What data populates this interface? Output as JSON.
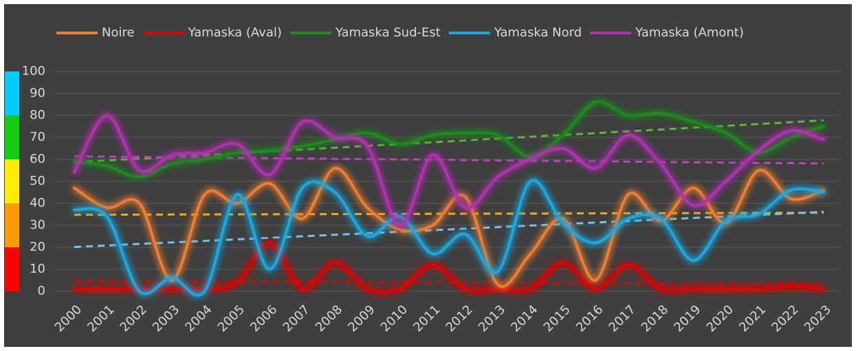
{
  "chart_data": {
    "type": "line",
    "smooth": true,
    "trendlines": true,
    "grid": true,
    "legend": "top",
    "categories": [
      "2000",
      "2001",
      "2002",
      "2003",
      "2004",
      "2005",
      "2006",
      "2007",
      "2008",
      "2009",
      "2010",
      "2011",
      "2012",
      "2013",
      "2014",
      "2015",
      "2016",
      "2017",
      "2018",
      "2019",
      "2020",
      "2021",
      "2022",
      "2023"
    ],
    "ylim": [
      0,
      100
    ],
    "yticks": [
      0,
      10,
      20,
      30,
      40,
      50,
      60,
      70,
      80,
      90,
      100
    ],
    "bands": [
      {
        "from": 0,
        "to": 20,
        "color": "#ff0000"
      },
      {
        "from": 20,
        "to": 40,
        "color": "#ff9900"
      },
      {
        "from": 40,
        "to": 60,
        "color": "#ffee00"
      },
      {
        "from": 60,
        "to": 80,
        "color": "#11cc11"
      },
      {
        "from": 80,
        "to": 100,
        "color": "#00ccff"
      }
    ],
    "series": [
      {
        "name": "Noire",
        "color": "#ed7d31",
        "trend_color": "#ffaa00",
        "values": [
          47,
          38,
          40,
          5,
          44,
          40,
          49,
          33,
          56,
          38,
          28,
          30,
          43,
          3,
          17,
          33,
          5,
          44,
          32,
          47,
          31,
          55,
          42,
          46
        ]
      },
      {
        "name": "Yamaska (Aval)",
        "color": "#e00000",
        "trend_color": "#e00000",
        "values": [
          1,
          1,
          1,
          1,
          1,
          4,
          22,
          1,
          13,
          1,
          1,
          12,
          1,
          1,
          1,
          13,
          1,
          12,
          1,
          1,
          1,
          1,
          2,
          1
        ]
      },
      {
        "name": "Yamaska Sud-Est",
        "color": "#1e8a1e",
        "trend_color": "#5fb83a",
        "values": [
          59,
          57,
          52,
          58,
          60,
          63,
          64,
          66,
          69,
          72,
          67,
          71,
          72,
          71,
          61,
          71,
          86,
          80,
          81,
          77,
          72,
          63,
          70,
          75
        ]
      },
      {
        "name": "Yamaska Nord",
        "color": "#1aa7e0",
        "trend_color": "#6cc4f0",
        "values": [
          37,
          34,
          0,
          6,
          0,
          44,
          10,
          47,
          45,
          25,
          34,
          17,
          26,
          9,
          50,
          31,
          22,
          33,
          33,
          14,
          32,
          35,
          46,
          45
        ]
      },
      {
        "name": "Yamaska (Amont)",
        "color": "#b030b0",
        "trend_color": "#c040c0",
        "values": [
          54,
          80,
          55,
          62,
          63,
          67,
          53,
          77,
          70,
          66,
          30,
          62,
          38,
          52,
          60,
          65,
          56,
          71,
          58,
          39,
          50,
          64,
          73,
          69
        ]
      }
    ]
  }
}
